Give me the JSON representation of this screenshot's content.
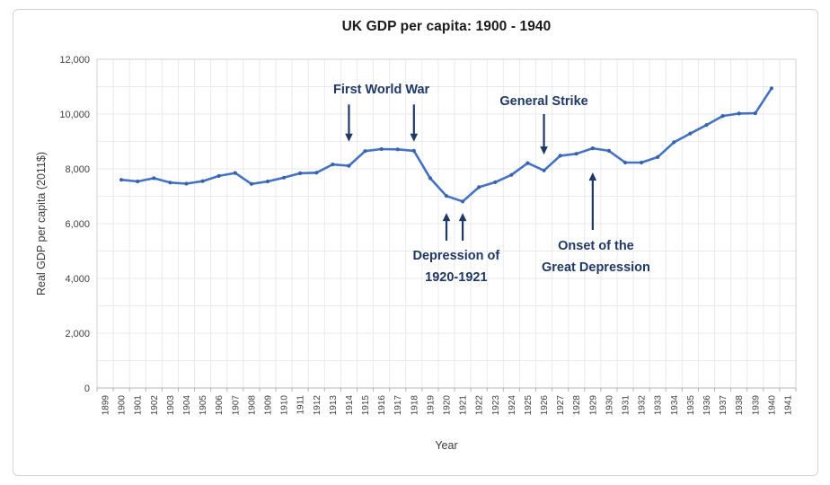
{
  "frame": {
    "border_color": "#d5d5d5",
    "background": "#ffffff"
  },
  "chart_data": {
    "type": "line",
    "title": "UK GDP per capita: 1900 - 1940",
    "xlabel": "Year",
    "ylabel": "Real GDP per capita (2011$)",
    "legend_position": "none",
    "grid": true,
    "line_color": "#4472C4",
    "marker_color": "#3a62a8",
    "annotation_color": "#1F3864",
    "axis_text_color": "#404040",
    "x_range": [
      1899,
      1941
    ],
    "ylim": [
      0,
      12000
    ],
    "y_ticks": [
      "0",
      "2,000",
      "4,000",
      "6,000",
      "8,000",
      "10,000",
      "12,000"
    ],
    "y_tick_values": [
      0,
      2000,
      4000,
      6000,
      8000,
      10000,
      12000
    ],
    "y_minor_step": 1000,
    "x_axis_labels": [
      "1899",
      "1900",
      "1901",
      "1902",
      "1903",
      "1904",
      "1905",
      "1906",
      "1907",
      "1908",
      "1909",
      "1910",
      "1911",
      "1912",
      "1913",
      "1914",
      "1915",
      "1916",
      "1917",
      "1918",
      "1919",
      "1920",
      "1921",
      "1922",
      "1923",
      "1924",
      "1925",
      "1926",
      "1927",
      "1928",
      "1929",
      "1930",
      "1931",
      "1932",
      "1933",
      "1934",
      "1935",
      "1936",
      "1937",
      "1938",
      "1939",
      "1940",
      "1941"
    ],
    "x": [
      1900,
      1901,
      1902,
      1903,
      1904,
      1905,
      1906,
      1907,
      1908,
      1909,
      1910,
      1911,
      1912,
      1913,
      1914,
      1915,
      1916,
      1917,
      1918,
      1919,
      1920,
      1921,
      1922,
      1923,
      1924,
      1925,
      1926,
      1927,
      1928,
      1929,
      1930,
      1931,
      1932,
      1933,
      1934,
      1935,
      1936,
      1937,
      1938,
      1939,
      1940
    ],
    "values": [
      7600,
      7540,
      7660,
      7500,
      7460,
      7550,
      7740,
      7850,
      7450,
      7540,
      7680,
      7840,
      7860,
      8160,
      8110,
      8650,
      8720,
      8710,
      8660,
      7660,
      7010,
      6810,
      7330,
      7510,
      7780,
      8210,
      7940,
      8480,
      8550,
      8750,
      8660,
      8230,
      8230,
      8430,
      8970,
      9290,
      9600,
      9930,
      10020,
      10030,
      10940
    ],
    "annotations": [
      {
        "id": "first-world-war",
        "lines": [
          "First World War"
        ],
        "text_year": 1916.0,
        "text_value": 10920,
        "arrows": [
          {
            "year": 1914,
            "from_value": 10350,
            "to_value": 8990
          },
          {
            "year": 1918,
            "from_value": 10350,
            "to_value": 8990
          }
        ]
      },
      {
        "id": "general-strike",
        "lines": [
          "General Strike"
        ],
        "text_year": 1926.0,
        "text_value": 10490,
        "arrows": [
          {
            "year": 1926,
            "from_value": 10000,
            "to_value": 8520
          }
        ]
      },
      {
        "id": "depression-of-1920-1921",
        "lines": [
          "Depression of",
          "1920-1921"
        ],
        "text_year": 1920.6,
        "text_value": 4460,
        "arrows": [
          {
            "year": 1920,
            "from_value": 5380,
            "to_value": 6390
          },
          {
            "year": 1921,
            "from_value": 5380,
            "to_value": 6390
          }
        ]
      },
      {
        "id": "onset-of-the-great-depression",
        "lines": [
          "Onset of the",
          "Great Depression"
        ],
        "text_year": 1929.2,
        "text_value": 4820,
        "arrows": [
          {
            "year": 1929,
            "from_value": 5770,
            "to_value": 7870
          }
        ]
      }
    ]
  }
}
